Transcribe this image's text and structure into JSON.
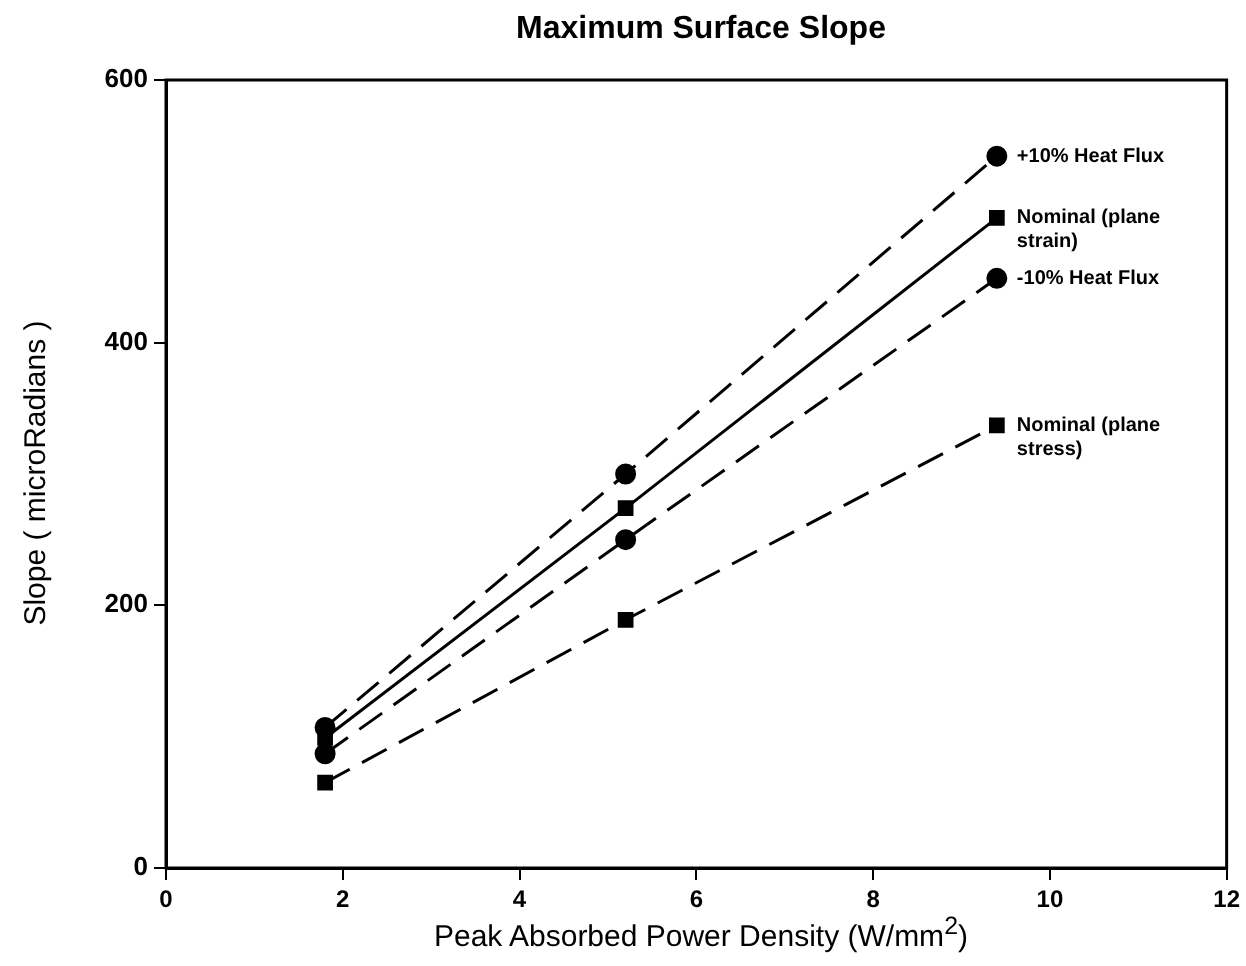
{
  "chart_data": {
    "type": "line",
    "title": "Maximum Surface Slope",
    "xlabel": "Peak Absorbed Power Density (W/mm$^{2}$)",
    "ylabel": "Slope ( microRadians )",
    "xlim": [
      0,
      12
    ],
    "xticks": [
      0,
      2,
      4,
      6,
      8,
      10,
      12
    ],
    "ylim": [
      0,
      600
    ],
    "yticks": [
      0,
      200,
      400,
      600
    ],
    "grid": false,
    "legend": false,
    "series": [
      {
        "name": "+10% Heat Flux",
        "color": "#000000",
        "x": [
          1.8,
          5.2,
          9.4
        ],
        "values": [
          107,
          300,
          542
        ],
        "marker": "circle",
        "line_style": "dashed"
      },
      {
        "name": "Nominal (plane strain)",
        "color": "#000000",
        "x": [
          1.8,
          5.2,
          9.4
        ],
        "values": [
          99,
          274,
          495
        ],
        "marker": "square",
        "line_style": "solid"
      },
      {
        "name": "-10% Heat Flux",
        "color": "#000000",
        "x": [
          1.8,
          5.2,
          9.4
        ],
        "values": [
          87,
          250,
          449
        ],
        "marker": "circle",
        "line_style": "dashed"
      },
      {
        "name": "Nominal (plane stress)",
        "color": "#000000",
        "x": [
          1.8,
          5.2,
          9.4
        ],
        "values": [
          65,
          189,
          337
        ],
        "marker": "square",
        "line_style": "dashed"
      }
    ]
  }
}
